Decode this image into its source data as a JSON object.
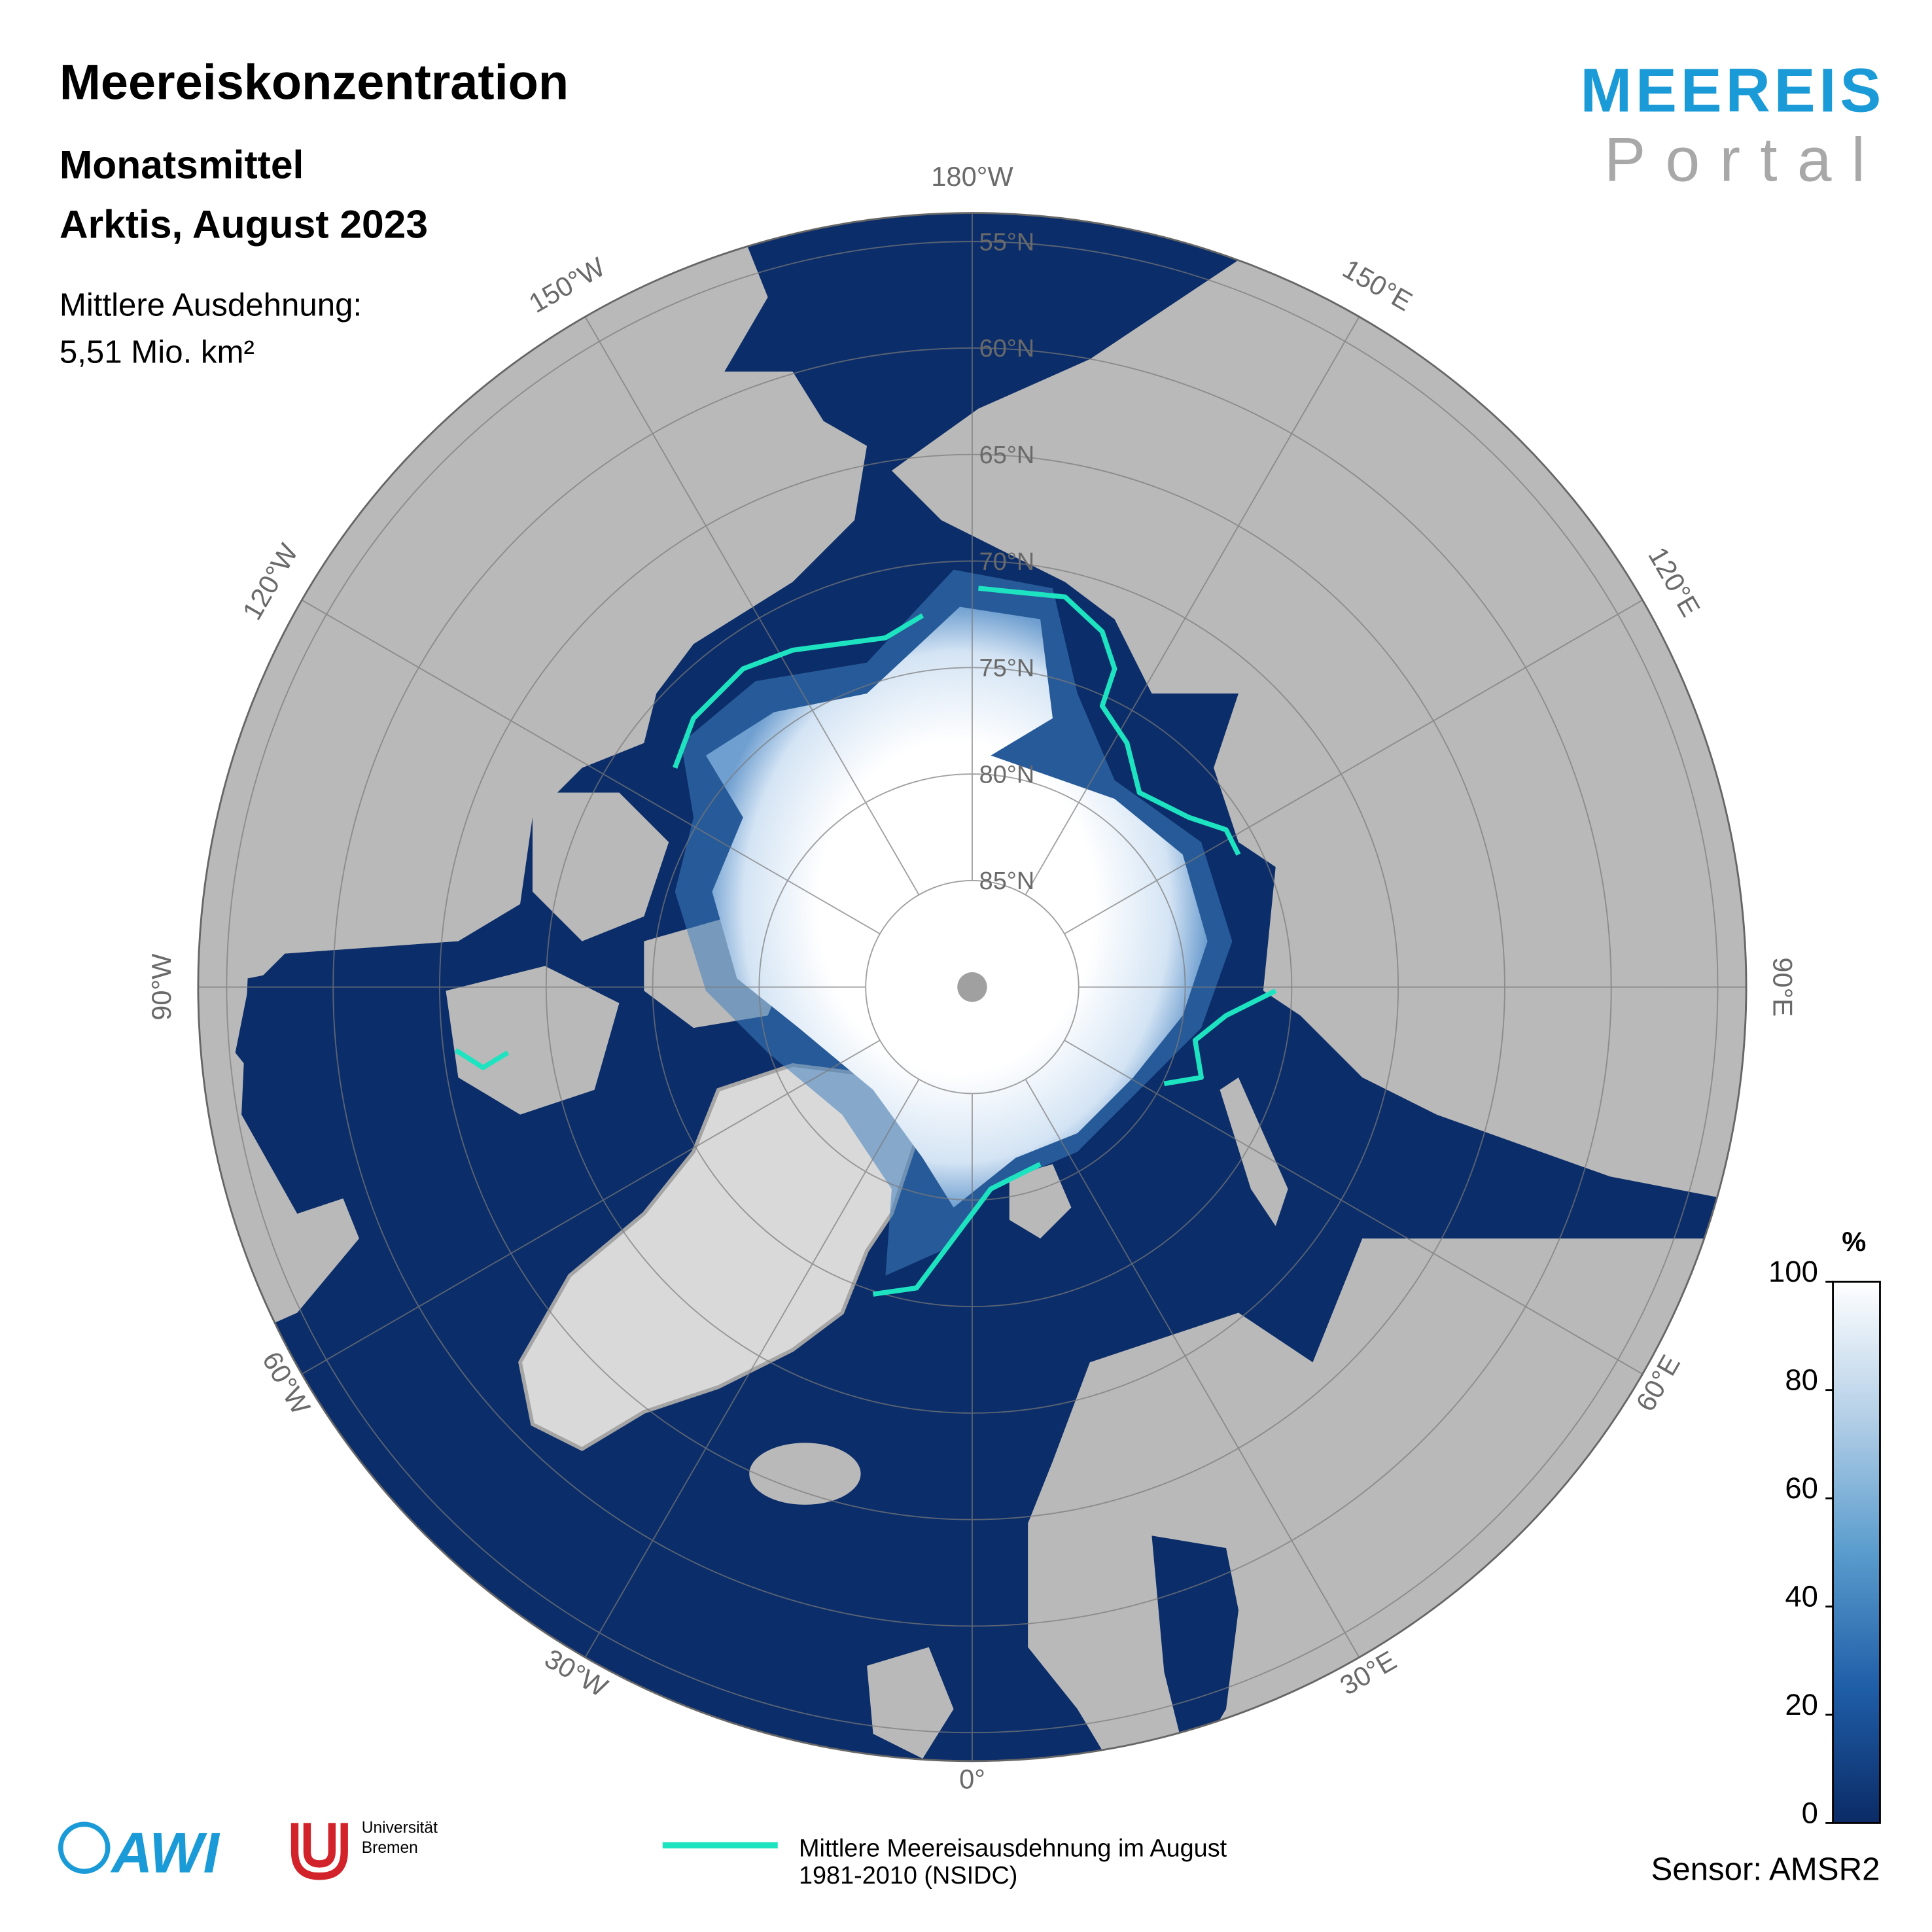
{
  "header": {
    "title": "Meereiskonzentration",
    "subtitle": [
      "Monatsmittel",
      "Arktis, August 2023"
    ],
    "extent_label": "Mittlere Ausdehnung:",
    "extent_value": "5,51 Mio. km²"
  },
  "logo": {
    "line1": "MEEREIS",
    "line2": "Portal"
  },
  "map": {
    "lon_labels": [
      {
        "value": 180,
        "label": "180°W"
      },
      {
        "value": 150,
        "label": "150°E"
      },
      {
        "value": 120,
        "label": "120°E"
      },
      {
        "value": 90,
        "label": "90°E"
      },
      {
        "value": 60,
        "label": "60°E"
      },
      {
        "value": 30,
        "label": "30°E"
      },
      {
        "value": 0,
        "label": "0°"
      },
      {
        "value": -30,
        "label": "30°W"
      },
      {
        "value": -60,
        "label": "60°W"
      },
      {
        "value": -90,
        "label": "90°W"
      },
      {
        "value": -120,
        "label": "120°W"
      },
      {
        "value": -150,
        "label": "150°W"
      }
    ],
    "lat_labels": [
      {
        "value": 55,
        "label": "55°N"
      },
      {
        "value": 60,
        "label": "60°N"
      },
      {
        "value": 65,
        "label": "65°N"
      },
      {
        "value": 70,
        "label": "70°N"
      },
      {
        "value": 75,
        "label": "75°N"
      },
      {
        "value": 80,
        "label": "80°N"
      },
      {
        "value": 85,
        "label": "85°N"
      }
    ]
  },
  "colorbar": {
    "unit": "%",
    "range": [
      0,
      100
    ],
    "ticks": [
      0,
      20,
      40,
      60,
      80,
      100
    ]
  },
  "legend": {
    "label": [
      "Mittlere Meereisausdehnung im August",
      "1981-2010 (NSIDC)"
    ]
  },
  "sensor": "Sensor: AMSR2",
  "footer": {
    "awi": "AWI",
    "bremen": [
      "Universität",
      "Bremen"
    ]
  }
}
